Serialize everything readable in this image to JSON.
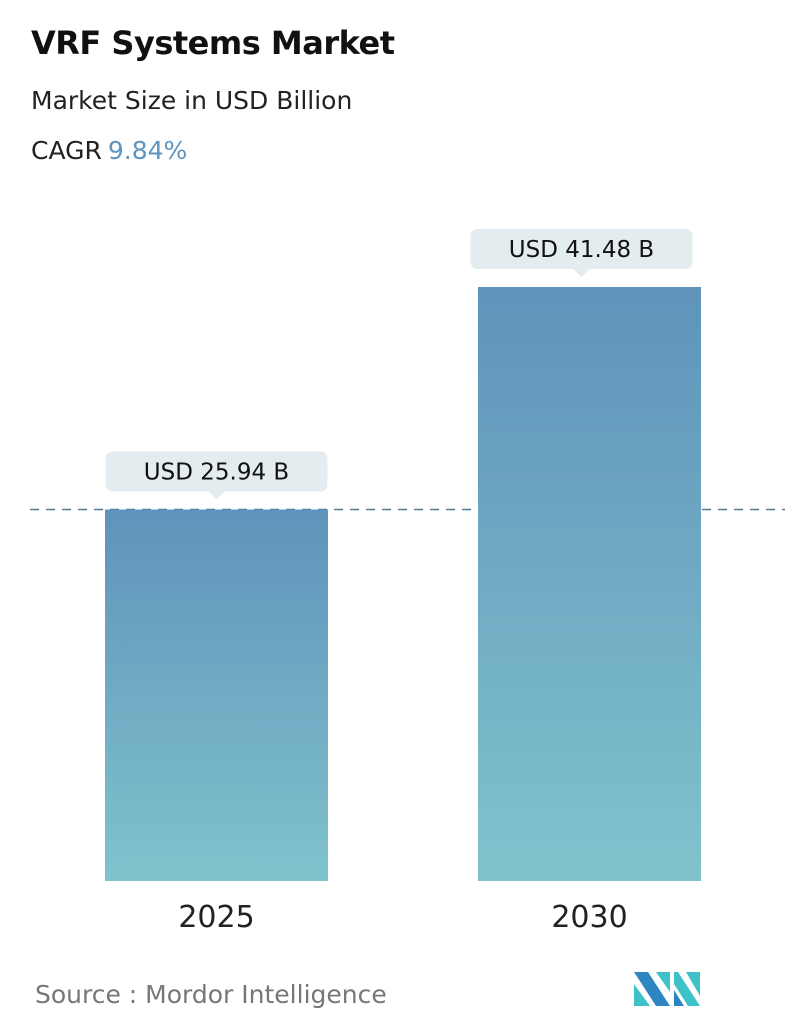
{
  "header": {
    "title": "VRF Systems Market",
    "subtitle": "Market Size in USD Billion",
    "cagr_label": "CAGR",
    "cagr_value": "9.84%"
  },
  "chart_data": {
    "type": "bar",
    "title": "VRF Systems Market",
    "ylabel": "Market Size in USD Billion",
    "categories": [
      "2025",
      "2030"
    ],
    "values": [
      25.94,
      41.48
    ],
    "data_labels": [
      "USD 25.94 B",
      "USD 41.48 B"
    ],
    "ylim": [
      0,
      41.48
    ],
    "grid": false,
    "reference_line": {
      "value": 25.94,
      "style": "dashed"
    },
    "colors": {
      "bar_top": "#5f93bb",
      "bar_bottom": "#80c3cc",
      "label_bg": "#e3ecef",
      "reference_line": "#4f7896",
      "cagr": "#5e95c0"
    }
  },
  "footer": {
    "source": "Source :  Mordor Intelligence",
    "logo": "Mordor Intelligence logo"
  }
}
